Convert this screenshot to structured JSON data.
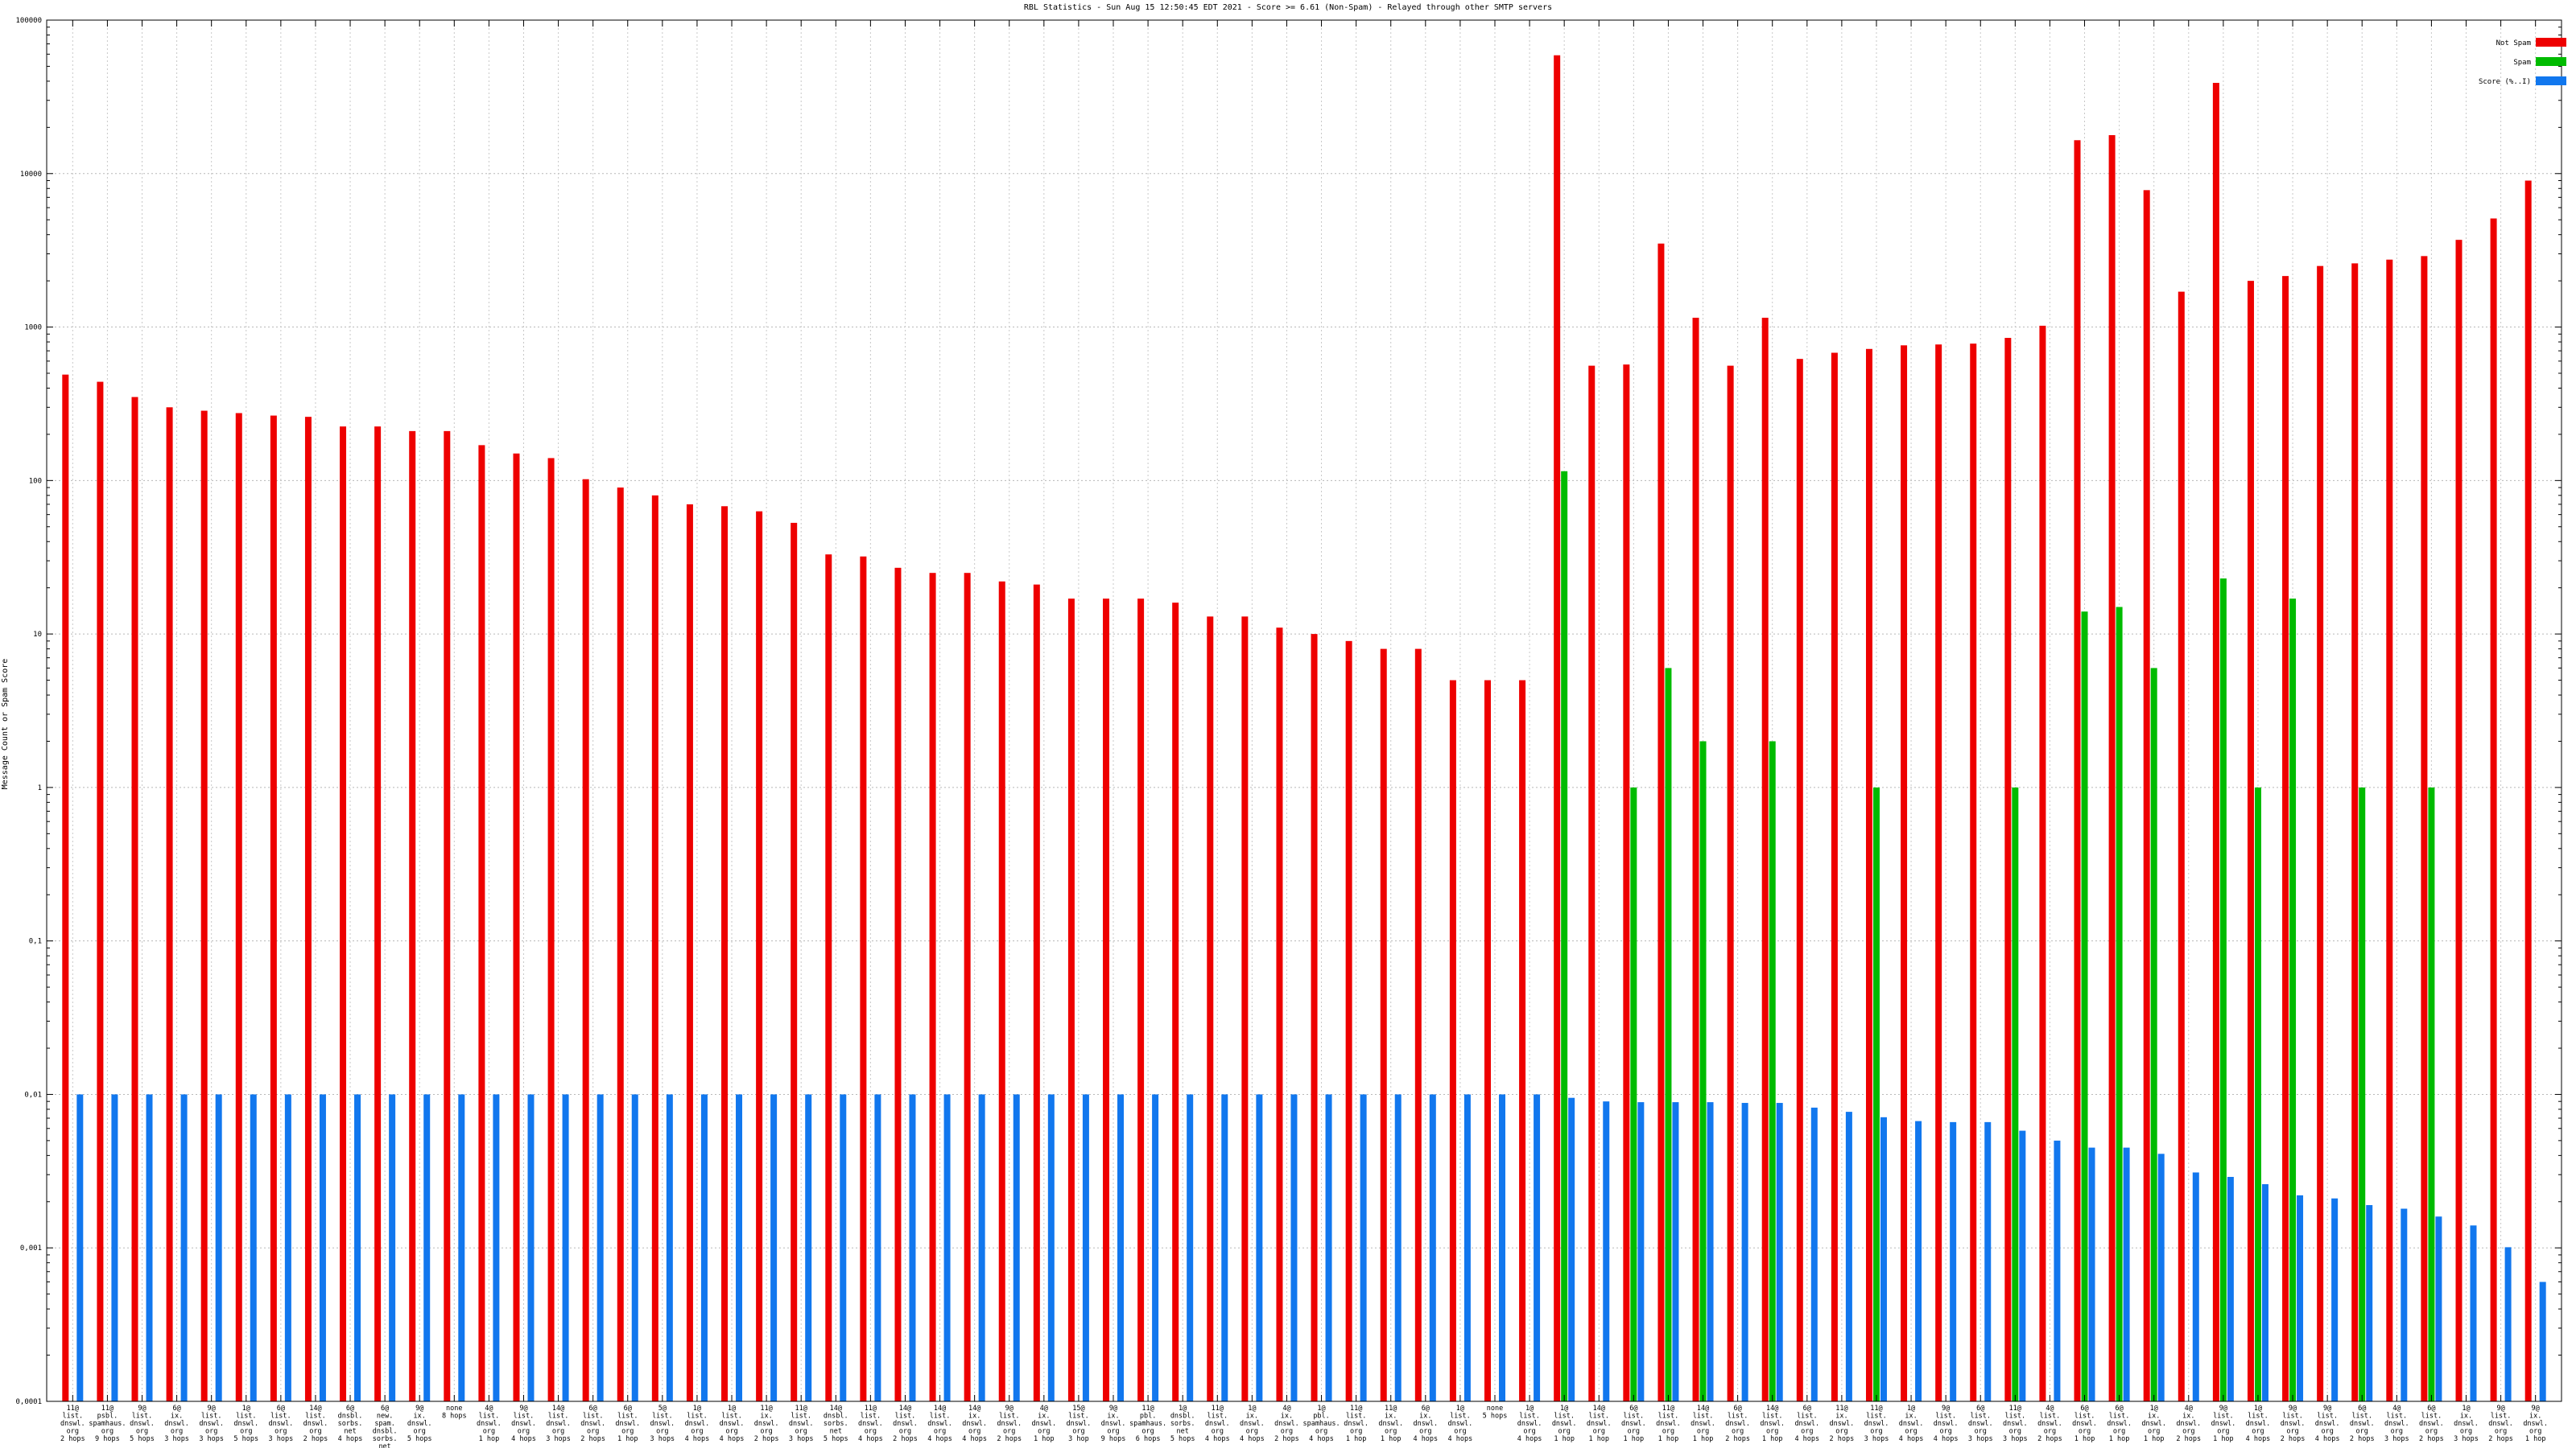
{
  "chart_data": {
    "type": "bar",
    "title": "RBL Statistics - Sun Aug 15 12:50:45 EDT 2021 - Score >= 6.61 (Non-Spam) - Relayed through other SMTP servers",
    "ylabel": "Message Count or Spam Score",
    "xlabel": "",
    "yscale": "log",
    "ylim": [
      0.0001,
      100000
    ],
    "ytick_labels": [
      "0,0001",
      "0,001",
      "0,01",
      "0,1",
      "1",
      "10",
      "100",
      "1000",
      "10000",
      "100000"
    ],
    "grid": true,
    "legend_position": "top-right",
    "colors": {
      "not_spam": "#ee0000",
      "spam": "#00bb00",
      "score": "#1177ee"
    },
    "categories": [
      [
        "11@",
        "list.",
        "dnswl.",
        "org",
        "2 hops"
      ],
      [
        "11@",
        "psbl.",
        "spamhaus.",
        "org",
        "9 hops"
      ],
      [
        "9@",
        "list.",
        "dnswl.",
        "org",
        "5 hops"
      ],
      [
        "6@",
        "ix.",
        "dnswl.",
        "org",
        "3 hops"
      ],
      [
        "9@",
        "list.",
        "dnswl.",
        "org",
        "3 hops"
      ],
      [
        "1@",
        "list.",
        "dnswl.",
        "org",
        "5 hops"
      ],
      [
        "6@",
        "list.",
        "dnswl.",
        "org",
        "3 hops"
      ],
      [
        "14@",
        "list.",
        "dnswl.",
        "org",
        "2 hops"
      ],
      [
        "6@",
        "dnsbl.",
        "sorbs.",
        "net",
        "4 hops"
      ],
      [
        "6@",
        "new.",
        "spam.",
        "dnsbl.",
        "sorbs.",
        "net",
        "4 hops"
      ],
      [
        "9@",
        "ix.",
        "dnswl.",
        "org",
        "5 hops"
      ],
      [
        "none",
        "8 hops"
      ],
      [
        "4@",
        "list.",
        "dnswl.",
        "org",
        "1 hop"
      ],
      [
        "9@",
        "list.",
        "dnswl.",
        "org",
        "4 hops"
      ],
      [
        "14@",
        "list.",
        "dnswl.",
        "org",
        "3 hops"
      ],
      [
        "6@",
        "list.",
        "dnswl.",
        "org",
        "2 hops"
      ],
      [
        "6@",
        "list.",
        "dnswl.",
        "org",
        "1 hop"
      ],
      [
        "5@",
        "list.",
        "dnswl.",
        "org",
        "3 hops"
      ],
      [
        "1@",
        "list.",
        "dnswl.",
        "org",
        "4 hops"
      ],
      [
        "1@",
        "list.",
        "dnswl.",
        "org",
        "4 hops"
      ],
      [
        "11@",
        "ix.",
        "dnswl.",
        "org",
        "2 hops"
      ],
      [
        "11@",
        "list.",
        "dnswl.",
        "org",
        "3 hops"
      ],
      [
        "14@",
        "dnsbl.",
        "sorbs.",
        "net",
        "5 hops"
      ],
      [
        "11@",
        "list.",
        "dnswl.",
        "org",
        "4 hops"
      ],
      [
        "14@",
        "list.",
        "dnswl.",
        "org",
        "2 hops"
      ],
      [
        "14@",
        "list.",
        "dnswl.",
        "org",
        "4 hops"
      ],
      [
        "14@",
        "ix.",
        "dnswl.",
        "org",
        "4 hops"
      ],
      [
        "9@",
        "list.",
        "dnswl.",
        "org",
        "2 hops"
      ],
      [
        "4@",
        "ix.",
        "dnswl.",
        "org",
        "1 hop"
      ],
      [
        "15@",
        "list.",
        "dnswl.",
        "org",
        "3 hop"
      ],
      [
        "9@",
        "ix.",
        "dnswl.",
        "org",
        "9 hops"
      ],
      [
        "11@",
        "pbl.",
        "spamhaus.",
        "org",
        "6 hops"
      ],
      [
        "1@",
        "dnsbl.",
        "sorbs.",
        "net",
        "5 hops"
      ],
      [
        "11@",
        "list.",
        "dnswl.",
        "org",
        "4 hops"
      ],
      [
        "1@",
        "ix.",
        "dnswl.",
        "org",
        "4 hops"
      ],
      [
        "4@",
        "ix.",
        "dnswl.",
        "org",
        "2 hops"
      ],
      [
        "1@",
        "pbl.",
        "spamhaus.",
        "org",
        "4 hops"
      ],
      [
        "11@",
        "list.",
        "dnswl.",
        "org",
        "1 hop"
      ],
      [
        "11@",
        "ix.",
        "dnswl.",
        "org",
        "1 hop"
      ],
      [
        "6@",
        "ix.",
        "dnswl.",
        "org",
        "4 hops"
      ],
      [
        "1@",
        "list.",
        "dnswl.",
        "org",
        "4 hops"
      ],
      [
        "none",
        "5 hops"
      ],
      [
        "1@",
        "list.",
        "dnswl.",
        "org",
        "4 hops"
      ],
      [
        "1@",
        "list.",
        "dnswl.",
        "org",
        "1 hop"
      ],
      [
        "14@",
        "list.",
        "dnswl.",
        "org",
        "1 hop"
      ],
      [
        "6@",
        "list.",
        "dnswl.",
        "org",
        "1 hop"
      ],
      [
        "11@",
        "list.",
        "dnswl.",
        "org",
        "1 hop"
      ],
      [
        "14@",
        "list.",
        "dnswl.",
        "org",
        "1 hop"
      ],
      [
        "6@",
        "list.",
        "dnswl.",
        "org",
        "2 hops"
      ],
      [
        "14@",
        "list.",
        "dnswl.",
        "org",
        "1 hop"
      ],
      [
        "6@",
        "list.",
        "dnswl.",
        "org",
        "4 hops"
      ],
      [
        "11@",
        "ix.",
        "dnswl.",
        "org",
        "2 hops"
      ],
      [
        "11@",
        "list.",
        "dnswl.",
        "org",
        "3 hops"
      ],
      [
        "1@",
        "ix.",
        "dnswl.",
        "org",
        "4 hops"
      ],
      [
        "9@",
        "list.",
        "dnswl.",
        "org",
        "4 hops"
      ],
      [
        "6@",
        "list.",
        "dnswl.",
        "org",
        "3 hops"
      ],
      [
        "11@",
        "list.",
        "dnswl.",
        "org",
        "3 hops"
      ],
      [
        "4@",
        "list.",
        "dnswl.",
        "org",
        "2 hops"
      ],
      [
        "6@",
        "list.",
        "dnswl.",
        "org",
        "1 hop"
      ],
      [
        "6@",
        "list.",
        "dnswl.",
        "org",
        "1 hop"
      ],
      [
        "1@",
        "ix.",
        "dnswl.",
        "org",
        "1 hop"
      ],
      [
        "4@",
        "ix.",
        "dnswl.",
        "org",
        "2 hops"
      ],
      [
        "9@",
        "list.",
        "dnswl.",
        "org",
        "1 hop"
      ],
      [
        "1@",
        "list.",
        "dnswl.",
        "org",
        "4 hops"
      ],
      [
        "9@",
        "list.",
        "dnswl.",
        "org",
        "2 hops"
      ],
      [
        "9@",
        "list.",
        "dnswl.",
        "org",
        "4 hops"
      ],
      [
        "6@",
        "list.",
        "dnswl.",
        "org",
        "2 hops"
      ],
      [
        "4@",
        "list.",
        "dnswl.",
        "org",
        "3 hops"
      ],
      [
        "6@",
        "list.",
        "dnswl.",
        "org",
        "2 hops"
      ],
      [
        "1@",
        "ix.",
        "dnswl.",
        "org",
        "3 hops"
      ],
      [
        "9@",
        "list.",
        "dnswl.",
        "org",
        "2 hops"
      ],
      [
        "9@",
        "ix.",
        "dnswl.",
        "org",
        "1 hop"
      ]
    ],
    "series": [
      {
        "name": "Not Spam",
        "color": "#ee0000",
        "values": [
          490,
          440,
          350,
          300,
          285,
          275,
          265,
          260,
          225,
          225,
          210,
          210,
          170,
          150,
          140,
          102,
          90,
          80,
          70,
          68,
          63,
          53,
          33,
          32,
          27,
          25,
          25,
          22,
          21,
          17,
          17,
          17,
          16,
          13,
          13,
          11,
          10,
          9,
          8,
          8,
          5,
          5,
          5,
          59000,
          560,
          570,
          3500,
          1150,
          560,
          1150,
          620,
          680,
          720,
          760,
          770,
          780,
          850,
          1020,
          16500,
          17800,
          7800,
          1700,
          39000,
          2000,
          2150,
          2500,
          2600,
          2750,
          2900,
          3700,
          5100,
          9000
        ]
      },
      {
        "name": "Spam",
        "color": "#00bb00",
        "values": [
          null,
          null,
          null,
          null,
          null,
          null,
          null,
          null,
          null,
          null,
          null,
          null,
          null,
          null,
          null,
          null,
          null,
          null,
          null,
          null,
          null,
          null,
          null,
          null,
          null,
          null,
          null,
          null,
          null,
          null,
          null,
          null,
          null,
          null,
          null,
          null,
          null,
          null,
          null,
          null,
          null,
          null,
          null,
          115,
          null,
          1,
          6,
          2,
          null,
          2,
          null,
          null,
          1,
          null,
          null,
          null,
          1,
          null,
          14,
          15,
          6,
          null,
          23,
          1,
          17,
          null,
          1,
          null,
          1,
          null,
          null,
          null
        ]
      },
      {
        "name": "Score (%..I)",
        "color": "#1177ee",
        "values": [
          0.01,
          0.01,
          0.01,
          0.01,
          0.01,
          0.01,
          0.01,
          0.01,
          0.01,
          0.01,
          0.01,
          0.01,
          0.01,
          0.01,
          0.01,
          0.01,
          0.01,
          0.01,
          0.01,
          0.01,
          0.01,
          0.01,
          0.01,
          0.01,
          0.01,
          0.01,
          0.01,
          0.01,
          0.01,
          0.01,
          0.01,
          0.01,
          0.01,
          0.01,
          0.01,
          0.01,
          0.01,
          0.01,
          0.01,
          0.01,
          0.01,
          0.01,
          0.01,
          0.0095,
          0.009,
          0.0089,
          0.0089,
          0.0089,
          0.0088,
          0.0088,
          0.0082,
          0.0077,
          0.0071,
          0.0067,
          0.0066,
          0.0066,
          0.0058,
          0.005,
          0.0045,
          0.0045,
          0.0041,
          0.0031,
          0.0029,
          0.0026,
          0.0022,
          0.0021,
          0.0019,
          0.0018,
          0.0016,
          0.0014,
          0.00101,
          0.0006
        ]
      }
    ]
  }
}
